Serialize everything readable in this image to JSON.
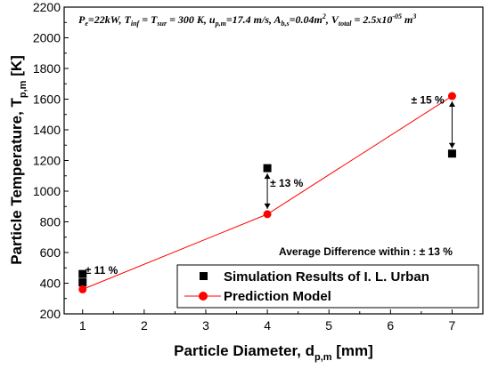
{
  "chart_data": {
    "type": "scatter",
    "xlabel": "Particle Diameter, d",
    "xlabel_sub": "p,m",
    "xlabel_unit": " [mm]",
    "ylabel": "Particle Temperature, T",
    "ylabel_sub": "p,m",
    "ylabel_unit": " [K]",
    "xlim": [
      0.7,
      7.5
    ],
    "ylim": [
      200,
      2200
    ],
    "xticks": [
      1,
      2,
      3,
      4,
      5,
      6,
      7
    ],
    "yticks": [
      200,
      400,
      600,
      800,
      1000,
      1200,
      1400,
      1600,
      1800,
      2000,
      2200
    ],
    "grid": false,
    "legend_position": "bottom-right",
    "parameters_line": "P_e=22kW, T_inf = T_sur = 300 K, u_p,m=17.4 m/s, A_b,s=0.04m^2, V_total = 2.5x10^-05 m^3",
    "series": [
      {
        "name": "Simulation Results of I. L. Urban",
        "marker": "square",
        "color": "#000000",
        "points": [
          {
            "x": 1,
            "y": 460
          },
          {
            "x": 1,
            "y": 405
          },
          {
            "x": 4,
            "y": 1150
          },
          {
            "x": 7,
            "y": 1245
          }
        ]
      },
      {
        "name": "Prediction Model",
        "marker": "circle",
        "line": true,
        "color": "#ff0000",
        "points": [
          {
            "x": 1,
            "y": 360
          },
          {
            "x": 4,
            "y": 850
          },
          {
            "x": 7,
            "y": 1620
          }
        ]
      }
    ],
    "annotations": [
      {
        "text": "± 11 %",
        "x": 1,
        "y_from": 460,
        "y_to": 360
      },
      {
        "text": "± 13 %",
        "x": 4,
        "y_from": 1150,
        "y_to": 850
      },
      {
        "text": "± 15 %",
        "x": 7,
        "y_from": 1620,
        "y_to": 1245
      }
    ],
    "summary_note": "Average Difference within : ± 13 %"
  }
}
